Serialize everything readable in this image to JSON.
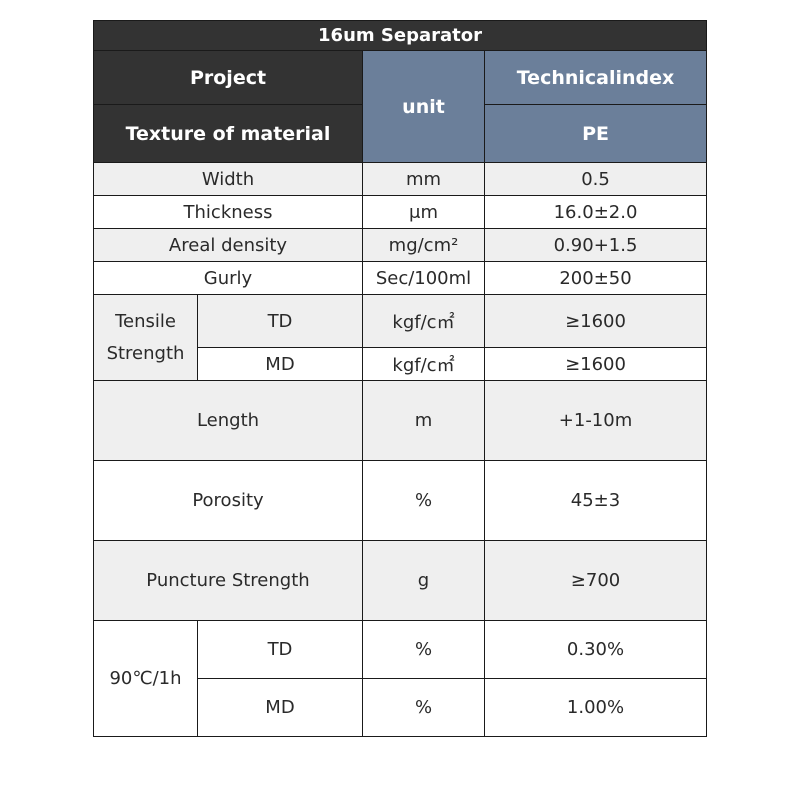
{
  "title": "16um Separator",
  "header": {
    "project": "Project",
    "unit": "unit",
    "technical_index": "Technicalindex",
    "texture": "Texture of material",
    "material": "PE"
  },
  "rows": {
    "width": {
      "name": "Width",
      "unit": "mm",
      "value": "0.5"
    },
    "thickness": {
      "name": "Thickness",
      "unit": "μm",
      "value": "16.0±2.0"
    },
    "areal": {
      "name": "Areal density",
      "unit": "mg/cm²",
      "value": "0.90+1.5"
    },
    "gurly": {
      "name": "Gurly",
      "unit": "Sec/100ml",
      "value": "200±50"
    },
    "tensile": {
      "name": "Tensile Strength",
      "td": {
        "dir": "TD",
        "unit": "kgf/c㎡",
        "value": "≥1600"
      },
      "md": {
        "dir": "MD",
        "unit": "kgf/c㎡",
        "value": "≥1600"
      }
    },
    "length": {
      "name": "Length",
      "unit": "m",
      "value": "+1-10m"
    },
    "porosity": {
      "name": "Porosity",
      "unit": "%",
      "value": "45±3"
    },
    "puncture": {
      "name": "Puncture Strength",
      "unit": "g",
      "value": "≥700"
    },
    "shrink": {
      "name": "90℃/1h",
      "td": {
        "dir": "TD",
        "unit": "%",
        "value": "0.30%"
      },
      "md": {
        "dir": "MD",
        "unit": "%",
        "value": "1.00%"
      }
    }
  }
}
